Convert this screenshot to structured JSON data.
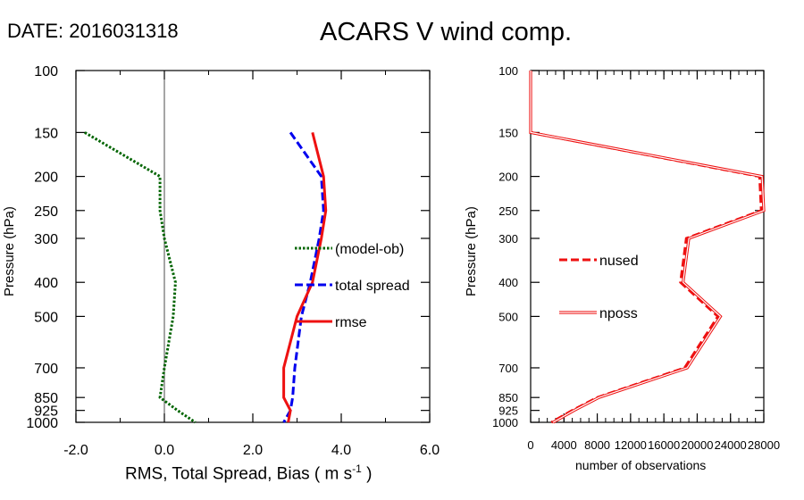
{
  "header": {
    "date_label": "DATE: 2016031318",
    "title": "ACARS V wind comp."
  },
  "chart_data": [
    {
      "type": "line",
      "ylabel": "Pressure (hPa)",
      "xlabel_text": "RMS, Total Spread, Bias ( m s",
      "xlabel_sup": "-1",
      "xlabel_end": " )",
      "xlim": [
        -2.0,
        6.0
      ],
      "x_ticks": [
        "-2.0",
        "0.0",
        "2.0",
        "4.0",
        "6.0"
      ],
      "y_scale": "log",
      "ylim": [
        1000,
        100
      ],
      "y_ticks": [
        "100",
        "150",
        "200",
        "250",
        "300",
        "400",
        "500",
        "700",
        "850",
        "925",
        "1000"
      ],
      "zero_line": true,
      "legend_position": "right-middle",
      "series": [
        {
          "name": "(model-ob)",
          "color": "#006400",
          "style": "dotted",
          "points": [
            [
              -1.8,
              150
            ],
            [
              -0.1,
              200
            ],
            [
              -0.1,
              250
            ],
            [
              0.0,
              300
            ],
            [
              0.25,
              400
            ],
            [
              0.2,
              500
            ],
            [
              0.0,
              700
            ],
            [
              -0.1,
              850
            ],
            [
              0.3,
              925
            ],
            [
              0.7,
              1000
            ]
          ]
        },
        {
          "name": "total spread",
          "color": "#0000ee",
          "style": "dashed",
          "points": [
            [
              2.85,
              150
            ],
            [
              3.55,
              200
            ],
            [
              3.6,
              250
            ],
            [
              3.5,
              300
            ],
            [
              3.3,
              400
            ],
            [
              3.1,
              500
            ],
            [
              2.95,
              700
            ],
            [
              2.9,
              850
            ],
            [
              2.85,
              925
            ],
            [
              2.7,
              1000
            ]
          ]
        },
        {
          "name": "rmse",
          "color": "#ee1111",
          "style": "solid",
          "points": [
            [
              3.35,
              150
            ],
            [
              3.6,
              200
            ],
            [
              3.65,
              250
            ],
            [
              3.55,
              300
            ],
            [
              3.35,
              400
            ],
            [
              3.0,
              500
            ],
            [
              2.7,
              700
            ],
            [
              2.7,
              850
            ],
            [
              2.85,
              925
            ],
            [
              2.8,
              1000
            ]
          ]
        }
      ]
    },
    {
      "type": "line",
      "ylabel": "Pressure (hPa)",
      "xlabel": "number of observations",
      "xlim": [
        0,
        28000
      ],
      "x_ticks": [
        "0",
        "4000",
        "8000",
        "12000",
        "16000",
        "20000",
        "24000",
        "28000"
      ],
      "y_scale": "log",
      "ylim": [
        1000,
        100
      ],
      "y_ticks": [
        "100",
        "150",
        "200",
        "250",
        "300",
        "400",
        "500",
        "700",
        "850",
        "925",
        "1000"
      ],
      "legend_position": "left-middle",
      "series": [
        {
          "name": "nused",
          "color": "#ee1111",
          "style": "dashed",
          "points": [
            [
              0,
              100
            ],
            [
              0,
              150
            ],
            [
              27500,
              200
            ],
            [
              27700,
              250
            ],
            [
              18700,
              300
            ],
            [
              18000,
              400
            ],
            [
              22500,
              500
            ],
            [
              18500,
              700
            ],
            [
              8000,
              850
            ],
            [
              5000,
              925
            ],
            [
              2500,
              1000
            ]
          ]
        },
        {
          "name": "nposs",
          "color": "#ee1111",
          "style": "double",
          "points": [
            [
              0,
              100
            ],
            [
              0,
              150
            ],
            [
              27800,
              200
            ],
            [
              28000,
              250
            ],
            [
              19000,
              300
            ],
            [
              18300,
              400
            ],
            [
              22800,
              500
            ],
            [
              18800,
              700
            ],
            [
              8200,
              850
            ],
            [
              5200,
              925
            ],
            [
              2700,
              1000
            ]
          ]
        }
      ]
    }
  ]
}
